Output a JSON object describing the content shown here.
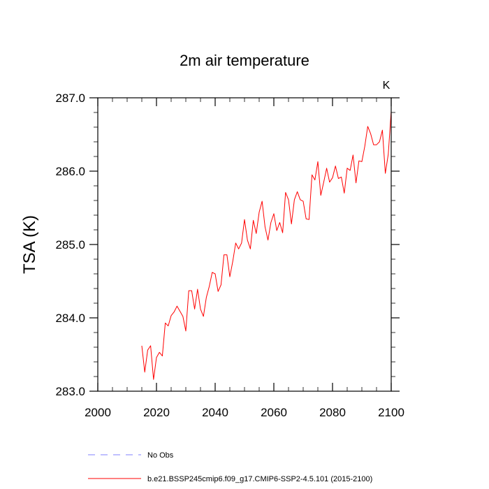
{
  "chart_data": {
    "type": "line",
    "title": "2m air temperature",
    "units_label": "K",
    "xlabel": "",
    "ylabel": "TSA  (K)",
    "xlim": [
      2000,
      2100
    ],
    "ylim": [
      283.0,
      287.0
    ],
    "x_ticks": [
      2000,
      2020,
      2040,
      2060,
      2080,
      2100
    ],
    "x_tick_labels": [
      "2000",
      "2020",
      "2040",
      "2060",
      "2080",
      "2100"
    ],
    "y_ticks": [
      283.0,
      284.0,
      285.0,
      286.0,
      287.0
    ],
    "y_tick_labels": [
      "283.0",
      "284.0",
      "285.0",
      "286.0",
      "287.0"
    ],
    "grid": false,
    "legend": {
      "placement": "bottom-left",
      "entries": [
        {
          "label": "No Obs",
          "color": "#8080ff",
          "style": "dashed"
        },
        {
          "label": "b.e21.BSSP245cmip6.f09_g17.CMIP6-SSP2-4.5.101 (2015-2100)",
          "color": "#ff0000",
          "style": "solid"
        }
      ]
    },
    "series": [
      {
        "name": "b.e21.BSSP245cmip6.f09_g17.CMIP6-SSP2-4.5.101 (2015-2100)",
        "color": "#ff0000",
        "x": [
          2015,
          2016,
          2017,
          2018,
          2019,
          2020,
          2021,
          2022,
          2023,
          2024,
          2025,
          2026,
          2027,
          2028,
          2029,
          2030,
          2031,
          2032,
          2033,
          2034,
          2035,
          2036,
          2037,
          2038,
          2039,
          2040,
          2041,
          2042,
          2043,
          2044,
          2045,
          2046,
          2047,
          2048,
          2049,
          2050,
          2051,
          2052,
          2053,
          2054,
          2055,
          2056,
          2057,
          2058,
          2059,
          2060,
          2061,
          2062,
          2063,
          2064,
          2065,
          2066,
          2067,
          2068,
          2069,
          2070,
          2071,
          2072,
          2073,
          2074,
          2075,
          2076,
          2077,
          2078,
          2079,
          2080,
          2081,
          2082,
          2083,
          2084,
          2085,
          2086,
          2087,
          2088,
          2089,
          2090,
          2091,
          2092,
          2093,
          2094,
          2095,
          2096,
          2097,
          2098,
          2099,
          2100
        ],
        "values": [
          283.62,
          283.26,
          283.56,
          283.62,
          283.16,
          283.46,
          283.53,
          283.48,
          283.93,
          283.89,
          284.03,
          284.08,
          284.16,
          284.09,
          284.02,
          283.82,
          284.37,
          284.37,
          284.12,
          284.39,
          284.12,
          284.02,
          284.28,
          284.43,
          284.62,
          284.6,
          284.36,
          284.45,
          284.86,
          284.86,
          284.56,
          284.77,
          285.02,
          284.94,
          285.02,
          285.34,
          285.06,
          284.94,
          285.33,
          285.15,
          285.44,
          285.59,
          285.24,
          285.06,
          285.3,
          285.42,
          285.19,
          285.3,
          285.16,
          285.71,
          285.61,
          285.28,
          285.61,
          285.72,
          285.61,
          285.59,
          285.35,
          285.34,
          285.95,
          285.88,
          286.13,
          285.67,
          285.85,
          286.04,
          285.85,
          285.91,
          286.07,
          285.9,
          285.92,
          285.7,
          286.04,
          286.01,
          286.22,
          285.84,
          286.14,
          286.13,
          286.34,
          286.61,
          286.51,
          286.36,
          286.36,
          286.4,
          286.56,
          285.97,
          286.23,
          286.82
        ]
      }
    ]
  }
}
